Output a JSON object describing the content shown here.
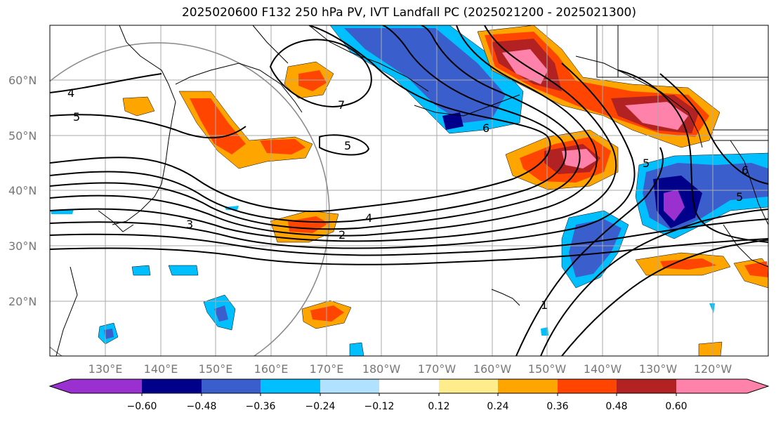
{
  "title": "2025020600 F132 250 hPa PV, IVT Landfall PC (2025021200 - 2025021300)",
  "lat_labels": [
    "60°N",
    "50°N",
    "40°N",
    "30°N",
    "20°N"
  ],
  "lon_labels": [
    "130°E",
    "140°E",
    "150°E",
    "160°E",
    "170°E",
    "180°W",
    "170°W",
    "160°W",
    "150°W",
    "140°W",
    "130°W",
    "120°W"
  ],
  "colorbar": {
    "tick_labels": [
      "−0.60",
      "−0.48",
      "−0.36",
      "−0.24",
      "−0.12",
      "0.12",
      "0.24",
      "0.36",
      "0.48",
      "0.60"
    ],
    "colors": [
      "#9b30d0",
      "#00008b",
      "#3a5fcd",
      "#00bfff",
      "#b0e2ff",
      "#ffffff",
      "#ffec8b",
      "#ffa500",
      "#ff4500",
      "#b22222",
      "#ff82ab"
    ]
  },
  "contour_labels": [
    "4",
    "5",
    "7",
    "6",
    "5",
    "4",
    "3",
    "2",
    "1",
    "5",
    "6",
    "5"
  ]
}
